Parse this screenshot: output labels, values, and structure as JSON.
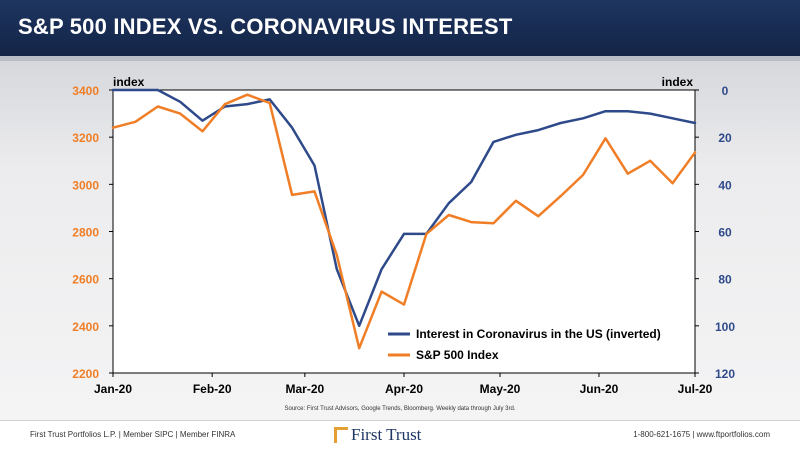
{
  "header": {
    "title": "S&P 500 INDEX VS. CORONAVIRUS INTEREST"
  },
  "footer": {
    "left": "First Trust Portfolios L.P. | Member SIPC | Member FINRA",
    "right": "1-800-621-1675 | www.ftportfolios.com",
    "logo_text": "First Trust"
  },
  "chart_data": {
    "type": "line",
    "source": "Source: First Trust Advisors, Google Trends, Bloomberg. Weekly data through July 3rd.",
    "left_axis": {
      "label": "index",
      "min": 2200,
      "max": 3400,
      "ticks": [
        2200,
        2400,
        2600,
        2800,
        3000,
        3200,
        3400
      ],
      "color": "#f07e26"
    },
    "right_axis": {
      "label": "index",
      "min": 0,
      "max": 120,
      "inverted": true,
      "ticks": [
        0,
        20,
        40,
        60,
        80,
        100,
        120
      ],
      "color": "#2e4a8a"
    },
    "x_axis": {
      "min": 0,
      "max": 26,
      "ticks": [
        {
          "label": "Jan-20",
          "x": 0
        },
        {
          "label": "Feb-20",
          "x": 4.43
        },
        {
          "label": "Mar-20",
          "x": 8.57
        },
        {
          "label": "Apr-20",
          "x": 13.0
        },
        {
          "label": "May-20",
          "x": 17.29
        },
        {
          "label": "Jun-20",
          "x": 21.71
        },
        {
          "label": "Jul-20",
          "x": 26.0
        }
      ]
    },
    "series": [
      {
        "name": "Interest in Coronavirus in the US (inverted)",
        "axis": "right",
        "color": "#2e4a8a",
        "x": [
          0,
          1,
          2,
          3,
          4,
          5,
          6,
          7,
          8,
          9,
          10,
          11,
          12,
          13,
          14,
          15,
          16,
          17,
          18,
          19,
          20,
          21,
          22,
          23,
          24,
          25,
          26
        ],
        "values": [
          0,
          0,
          0,
          5,
          13,
          7,
          6,
          4,
          16,
          32,
          76,
          100,
          76,
          61,
          61,
          48,
          39,
          22,
          19,
          17,
          14,
          12,
          9,
          9,
          10,
          12,
          14
        ]
      },
      {
        "name": "S&P 500 Index",
        "axis": "left",
        "color": "#f07e26",
        "x": [
          0,
          1,
          2,
          3,
          4,
          5,
          6,
          7,
          8,
          9,
          10,
          11,
          12,
          13,
          14,
          15,
          16,
          17,
          18,
          19,
          20,
          21,
          22,
          23,
          24,
          25,
          26
        ],
        "values": [
          3240,
          3265,
          3330,
          3300,
          3225,
          3340,
          3380,
          3345,
          2955,
          2970,
          2700,
          2305,
          2545,
          2490,
          2790,
          2870,
          2840,
          2835,
          2930,
          2865,
          2950,
          3040,
          3195,
          3045,
          3100,
          3005,
          3135
        ]
      }
    ],
    "legend": {
      "placement": "bottom-right"
    }
  }
}
